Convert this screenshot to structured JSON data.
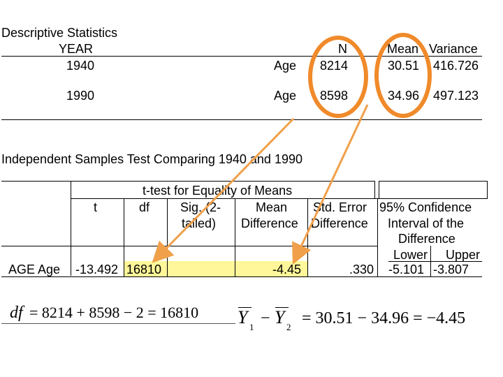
{
  "descriptive": {
    "title": "Descriptive Statistics",
    "year_header": "YEAR",
    "n_header": "N",
    "mean_header": "Mean",
    "variance_header": "Variance",
    "rows": [
      {
        "year": "1940",
        "var": "Age",
        "n": "8214",
        "mean": "30.51",
        "variance": "416.726"
      },
      {
        "year": "1990",
        "var": "Age",
        "n": "8598",
        "mean": "34.96",
        "variance": "497.123"
      }
    ]
  },
  "ttest": {
    "title": "Independent Samples Test Comparing 1940 and 1990",
    "group_header": "t-test for Equality of Means",
    "headers": {
      "t": "t",
      "df": "df",
      "sig_1": "Sig. (2-",
      "sig_2": "tailed)",
      "md_1": "Mean",
      "md_2": "Difference",
      "se_1": "Std. Error",
      "se_2": "Difference",
      "ci_1": "95% Confidence",
      "ci_2": "Interval of the",
      "ci_3": "Difference",
      "lower": "Lower",
      "upper": "Upper"
    },
    "row": {
      "label": "AGE  Age",
      "t": "-13.492",
      "df": "16810",
      "md": "-4.45",
      "se": ".330",
      "lower": "-5.101",
      "upper": "-3.807"
    }
  },
  "formulas": {
    "df_lhs": "df",
    "df_rhs": "= 8214 + 8598 − 2 = 16810",
    "y1": "Y",
    "sub1": "1",
    "minus": "−",
    "y2": "Y",
    "sub2": "2",
    "mean_rhs": "= 30.51 − 34.96 = −4.45"
  },
  "colors": {
    "highlight": "#fff799",
    "annotation": "#f0a04a",
    "circle_outline": "#f08a2a"
  }
}
